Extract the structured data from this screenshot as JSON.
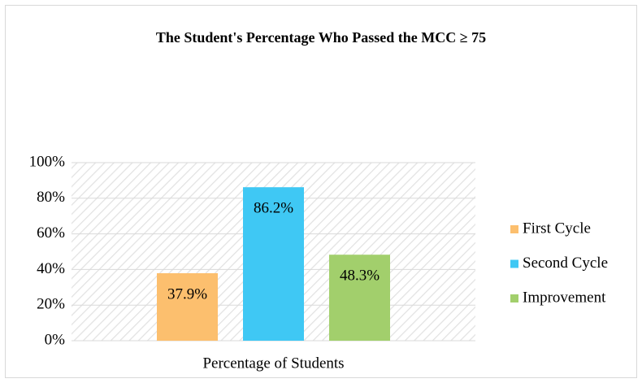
{
  "chart_data": {
    "type": "bar",
    "title": "The Student's Percentage Who Passed the MCC ≥ 75",
    "categories": [
      "Percentage of Students"
    ],
    "series": [
      {
        "name": "First Cycle",
        "color": "#fcbf6e",
        "values": [
          37.9
        ],
        "value_labels": [
          "37.9%"
        ]
      },
      {
        "name": "Second Cycle",
        "color": "#3fc8f4",
        "values": [
          86.2
        ],
        "value_labels": [
          "86.2%"
        ]
      },
      {
        "name": "Improvement",
        "color": "#a2cf6c",
        "values": [
          48.3
        ],
        "value_labels": [
          "48.3%"
        ]
      }
    ],
    "ylim": [
      0,
      100
    ],
    "yticks": [
      {
        "value": 0,
        "label": "0%"
      },
      {
        "value": 20,
        "label": "20%"
      },
      {
        "value": 40,
        "label": "40%"
      },
      {
        "value": 60,
        "label": "60%"
      },
      {
        "value": 80,
        "label": "80%"
      },
      {
        "value": 100,
        "label": "100%"
      }
    ],
    "grid": true,
    "legend": "right"
  }
}
